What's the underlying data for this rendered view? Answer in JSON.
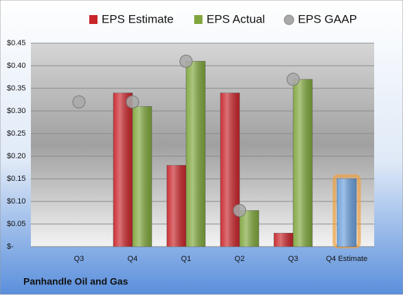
{
  "chart_data": {
    "type": "bar",
    "title": "Panhandle Oil and Gas",
    "categories": [
      "Q3",
      "Q4",
      "Q1",
      "Q2",
      "Q3",
      "Q4 Estimate"
    ],
    "series": [
      {
        "name": "EPS Estimate",
        "color": "#c8262b",
        "values": [
          null,
          0.34,
          0.18,
          0.34,
          0.03,
          0.15
        ],
        "point_colors": [
          null,
          null,
          null,
          null,
          null,
          "#6b9fdb"
        ]
      },
      {
        "name": "EPS Actual",
        "color": "#7fa63c",
        "values": [
          null,
          0.31,
          0.41,
          0.08,
          0.37,
          null
        ]
      },
      {
        "name": "EPS GAAP",
        "color": "#a9a9a9",
        "marker": "circle",
        "values": [
          0.32,
          0.32,
          0.41,
          0.08,
          0.37,
          null
        ]
      }
    ],
    "ylim": [
      0,
      0.45
    ],
    "yticks": [
      {
        "value": 0,
        "label": "$-"
      },
      {
        "value": 0.05,
        "label": "$0.05"
      },
      {
        "value": 0.1,
        "label": "$0.10"
      },
      {
        "value": 0.15,
        "label": "$0.15"
      },
      {
        "value": 0.2,
        "label": "$0.20"
      },
      {
        "value": 0.25,
        "label": "$0.25"
      },
      {
        "value": 0.3,
        "label": "$0.30"
      },
      {
        "value": 0.35,
        "label": "$0.35"
      },
      {
        "value": 0.4,
        "label": "$0.40"
      },
      {
        "value": 0.45,
        "label": "$0.45"
      }
    ],
    "grid": true,
    "legend": "top"
  }
}
